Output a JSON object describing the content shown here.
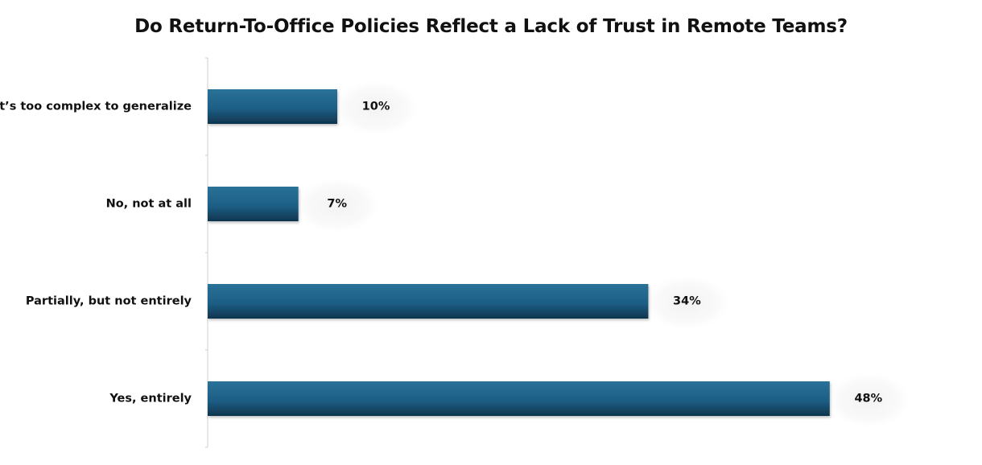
{
  "chart_data": {
    "type": "bar",
    "orientation": "horizontal",
    "title": "Do Return-To-Office Policies Reflect a Lack of Trust in Remote Teams?",
    "categories": [
      "It’s too complex to generalize",
      "No, not at all",
      "Partially, but not entirely",
      "Yes, entirely"
    ],
    "values": [
      10,
      7,
      34,
      48
    ],
    "data_labels": [
      "10%",
      "7%",
      "34%",
      "48%"
    ],
    "xlim": [
      0,
      55
    ],
    "value_unit": "%",
    "grid": false,
    "legend": "none",
    "colors": {
      "bar": "#1d5f86",
      "bar_dark": "#103a55",
      "axis": "#cccccc"
    }
  }
}
